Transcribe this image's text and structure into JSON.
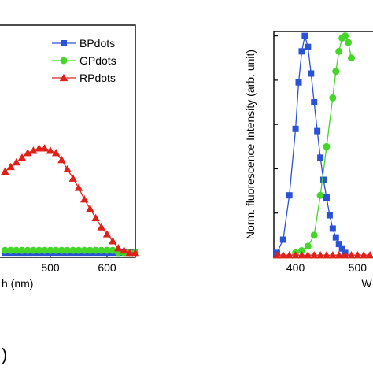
{
  "chart_data": [
    {
      "type": "line",
      "panel": "left",
      "xlabel": "h (nm)",
      "xlim": [
        400,
        650
      ],
      "ylim": [
        0,
        1
      ],
      "x_ticks": [
        500,
        600
      ],
      "x_tick_labels": [
        "500",
        "600"
      ],
      "legend": "top-right",
      "x": [
        420,
        430,
        440,
        450,
        460,
        470,
        480,
        490,
        500,
        510,
        520,
        530,
        540,
        550,
        560,
        570,
        580,
        590,
        600,
        610,
        620,
        630,
        640,
        650
      ],
      "series": [
        {
          "name": "BPdots",
          "color": "#2a52d6",
          "marker": "square",
          "values": [
            0.02,
            0.02,
            0.02,
            0.02,
            0.02,
            0.02,
            0.02,
            0.02,
            0.02,
            0.02,
            0.02,
            0.02,
            0.02,
            0.02,
            0.02,
            0.02,
            0.02,
            0.02,
            0.02,
            0.02,
            0.02,
            0.02,
            0.02,
            0.02
          ]
        },
        {
          "name": "GPdots",
          "color": "#45d62a",
          "marker": "circle",
          "values": [
            0.03,
            0.03,
            0.03,
            0.03,
            0.03,
            0.03,
            0.03,
            0.03,
            0.03,
            0.03,
            0.03,
            0.03,
            0.03,
            0.03,
            0.03,
            0.03,
            0.03,
            0.03,
            0.03,
            0.03,
            0.02,
            0.02,
            0.02,
            0.02
          ]
        },
        {
          "name": "RPdots",
          "color": "#e0211a",
          "marker": "triangle",
          "values": [
            0.37,
            0.39,
            0.41,
            0.43,
            0.45,
            0.46,
            0.47,
            0.47,
            0.46,
            0.45,
            0.42,
            0.38,
            0.34,
            0.3,
            0.25,
            0.21,
            0.17,
            0.13,
            0.1,
            0.07,
            0.04,
            0.03,
            0.02,
            0.02
          ]
        }
      ]
    },
    {
      "type": "line",
      "panel": "right",
      "ylabel": "Norm. fluorescence Intensity (arb. unit)",
      "xlabel": "W",
      "xlim": [
        365,
        530
      ],
      "ylim": [
        0,
        1.02
      ],
      "x_ticks": [
        400,
        500
      ],
      "x_tick_labels": [
        "400",
        "500"
      ],
      "x": [
        370,
        380,
        390,
        400,
        405,
        410,
        415,
        420,
        425,
        430,
        435,
        440,
        445,
        450,
        455,
        460,
        465,
        470,
        475,
        480,
        485,
        490
      ],
      "series": [
        {
          "name": "BPdots",
          "color": "#2a52d6",
          "marker": "square",
          "x": [
            370,
            380,
            390,
            400,
            405,
            410,
            415,
            420,
            425,
            430,
            435,
            440,
            445,
            450,
            455,
            460,
            465,
            470,
            475,
            480
          ],
          "values": [
            0.02,
            0.08,
            0.28,
            0.58,
            0.79,
            0.93,
            1.0,
            0.95,
            0.83,
            0.7,
            0.57,
            0.45,
            0.35,
            0.27,
            0.19,
            0.13,
            0.09,
            0.06,
            0.04,
            0.02
          ]
        },
        {
          "name": "GPdots",
          "color": "#45d62a",
          "marker": "circle",
          "x": [
            400,
            410,
            420,
            430,
            440,
            450,
            460,
            465,
            470,
            475,
            480,
            485,
            490
          ],
          "values": [
            0.02,
            0.03,
            0.05,
            0.1,
            0.28,
            0.5,
            0.72,
            0.84,
            0.93,
            0.99,
            1.0,
            0.97,
            0.9
          ]
        },
        {
          "name": "RPdots",
          "color": "#e0211a",
          "marker": "triangle",
          "x": [
            370,
            380,
            390,
            400,
            410,
            420,
            430,
            440,
            450,
            460,
            470,
            480,
            490,
            500,
            510,
            520
          ],
          "values": [
            0.01,
            0.01,
            0.01,
            0.01,
            0.01,
            0.01,
            0.01,
            0.01,
            0.01,
            0.01,
            0.01,
            0.01,
            0.01,
            0.01,
            0.01,
            0.01
          ]
        }
      ]
    }
  ],
  "panel_labels": {
    "bottom_left": ")"
  }
}
